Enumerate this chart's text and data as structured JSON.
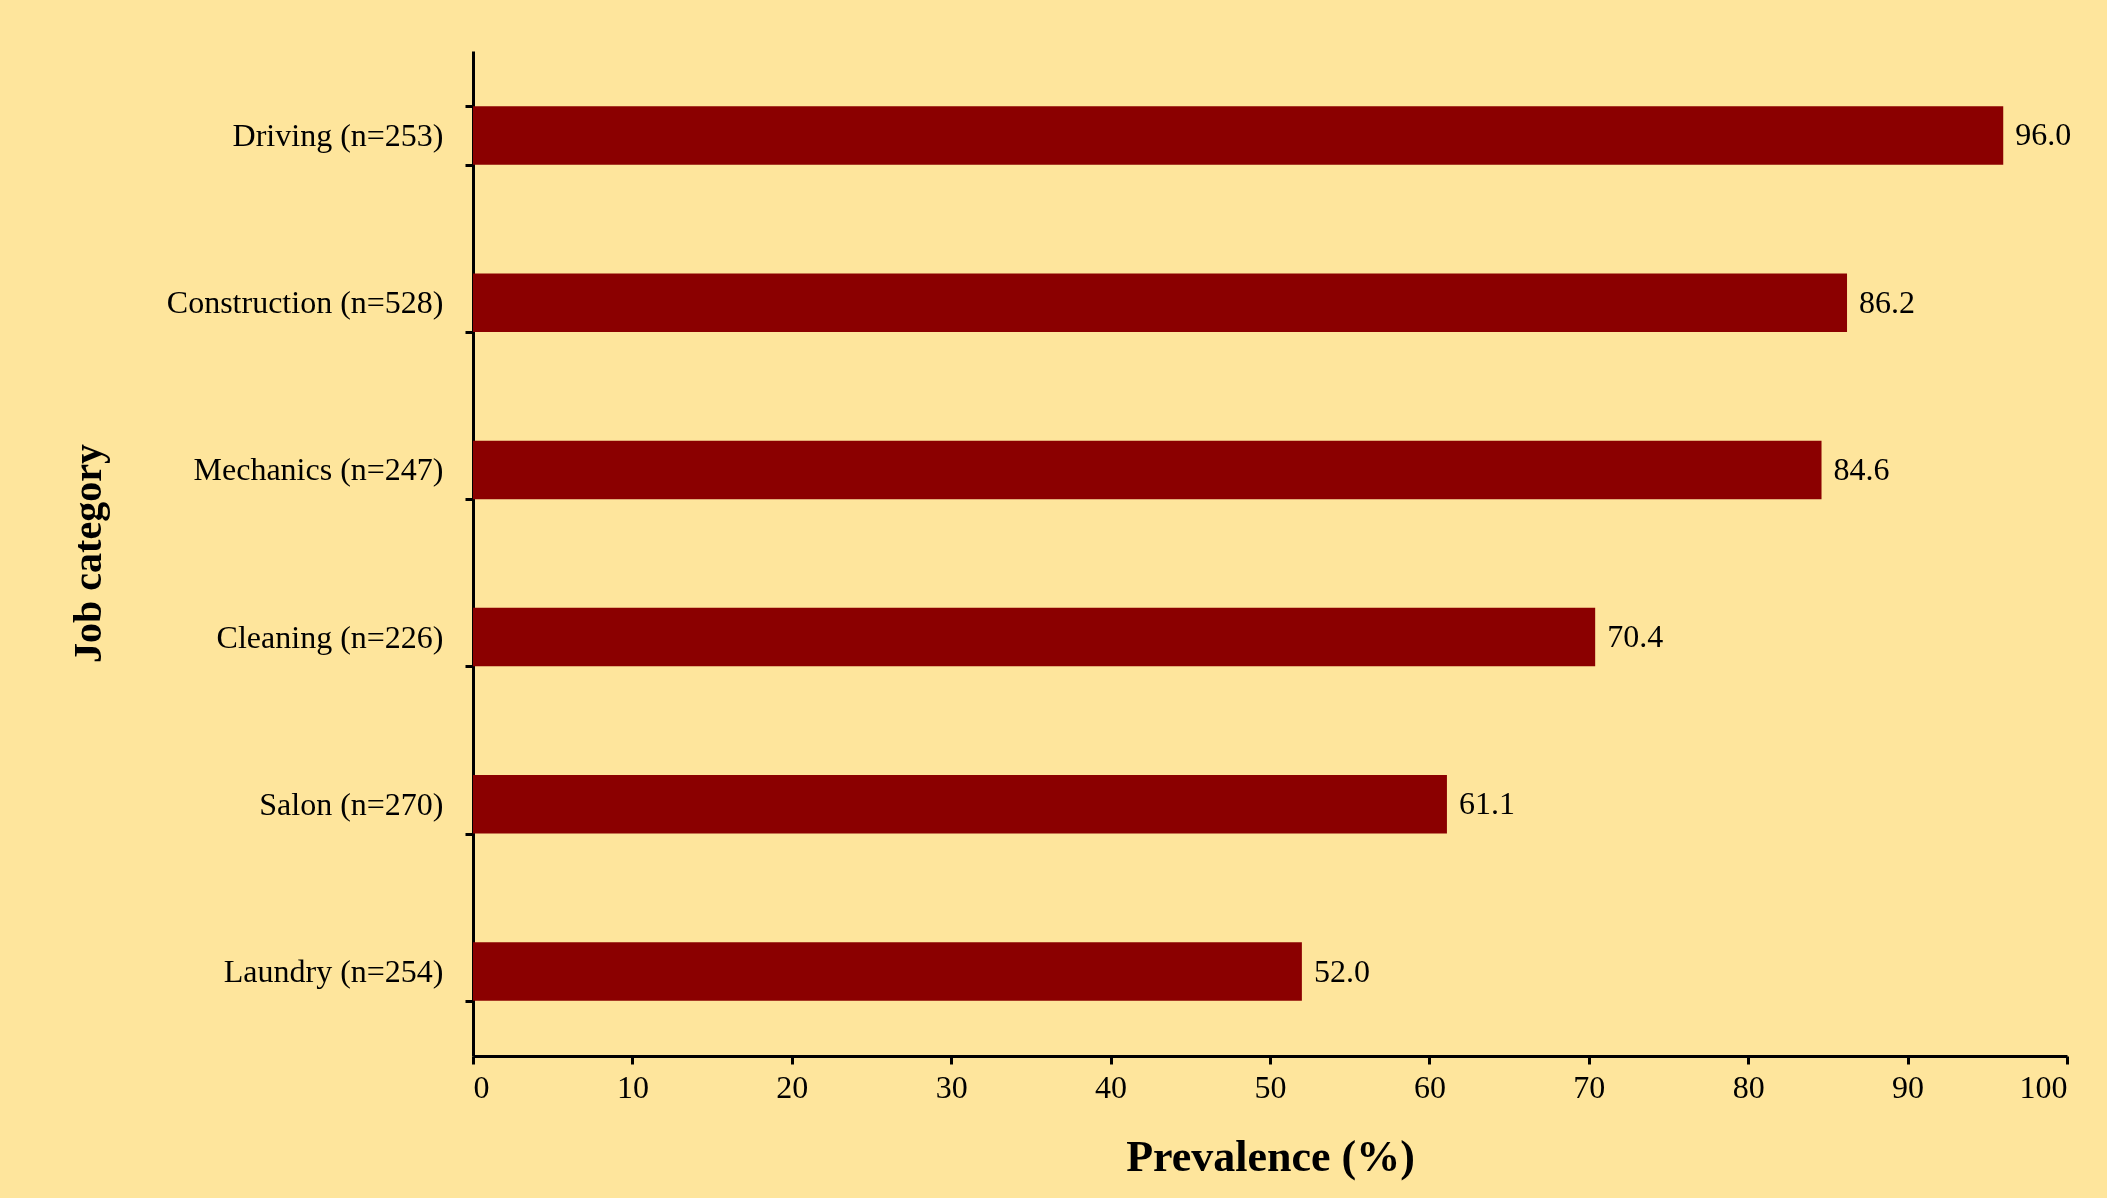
{
  "chart_data": {
    "type": "bar",
    "orientation": "horizontal",
    "xlabel": "Prevalence (%)",
    "ylabel": "Job category",
    "categories": [
      "Driving (n=253)",
      "Construction (n=528)",
      "Mechanics (n=247)",
      "Cleaning (n=226)",
      "Salon (n=270)",
      "Laundry (n=254)"
    ],
    "values": [
      96.0,
      86.2,
      84.6,
      70.4,
      61.1,
      52.0
    ],
    "color": "#8b0000",
    "xlim": [
      0,
      100
    ],
    "xticks": [
      0,
      10,
      20,
      30,
      40,
      50,
      60,
      70,
      80,
      90,
      100
    ],
    "value_labels": [
      "96.0",
      "86.2",
      "84.6",
      "70.4",
      "61.1",
      "52.0"
    ],
    "grid": false
  }
}
